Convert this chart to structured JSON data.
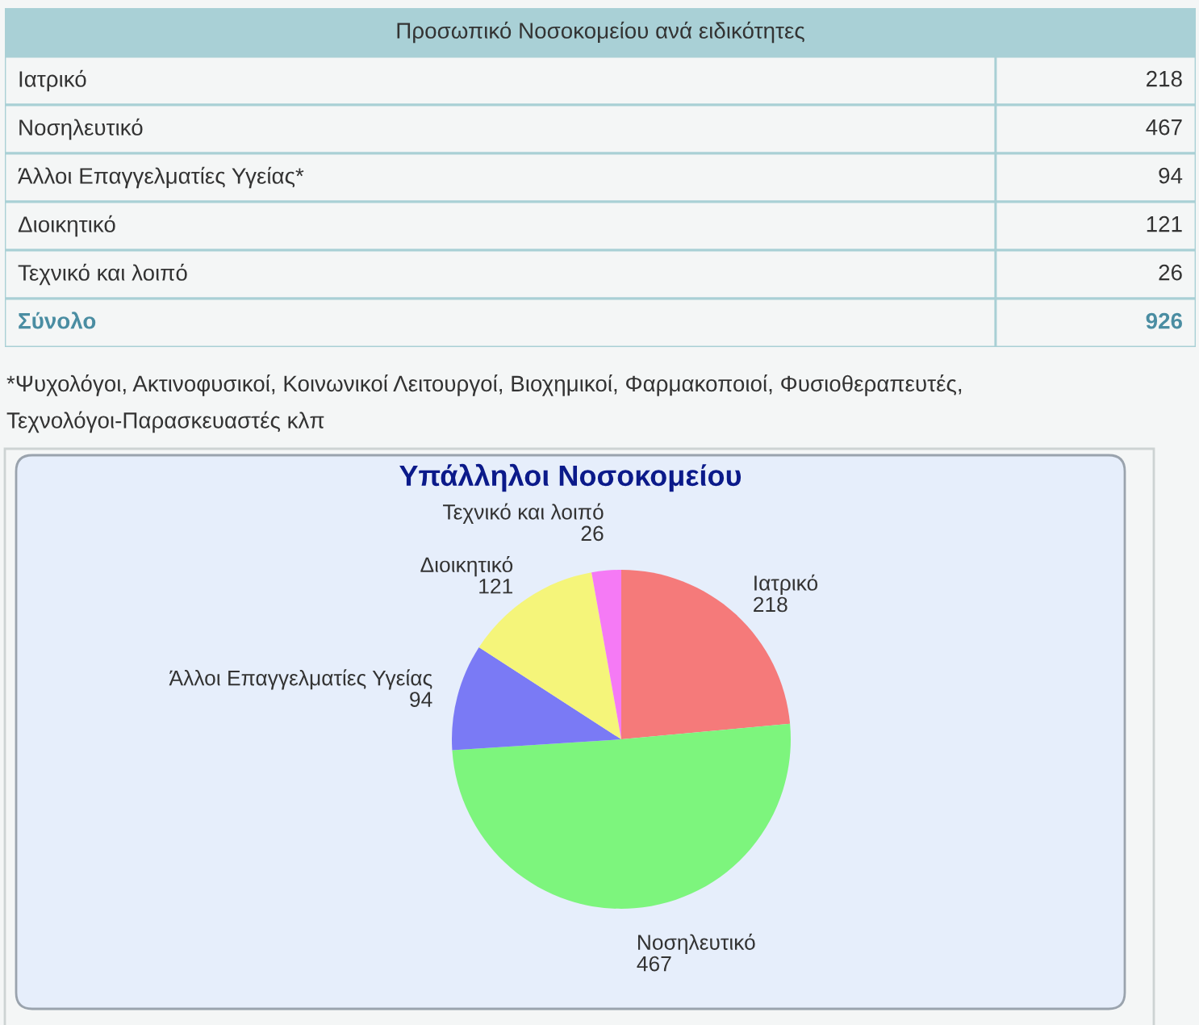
{
  "chart_data": [
    {
      "type": "other",
      "title": "Προσωπικό Νοσοκομείου ανά ειδικότητες",
      "categories": [
        "Ιατρικό",
        "Νοσηλευτικό",
        "Άλλοι Επαγγελματίες Υγείας*",
        "Διοικητικό",
        "Τεχνικό και λοιπό",
        "Σύνολο"
      ],
      "values": [
        218,
        467,
        94,
        121,
        26,
        926
      ],
      "data_labels": true,
      "annotations": [
        "*Ψυχολόγοι, Ακτινοφυσικοί, Κοινωνικοί Λειτουργοί, Βιοχημικοί, Φαρμακοποιοί, Φυσιοθεραπευτές, Τεχνολόγοι-Παρασκευαστές κλπ"
      ]
    },
    {
      "type": "pie",
      "title": "Υπάλληλοι Νοσοκομείου",
      "categories": [
        "Ιατρικό",
        "Νοσηλευτικό",
        "Άλλοι Επαγγελματίες Υγείας",
        "Διοικητικό",
        "Τεχνικό και λοιπό"
      ],
      "values": [
        218,
        467,
        94,
        121,
        26
      ],
      "colors": [
        "#f57a7a",
        "#7df57d",
        "#7a7af5",
        "#f5f57a",
        "#f57af5"
      ],
      "data_labels": true
    }
  ]
}
